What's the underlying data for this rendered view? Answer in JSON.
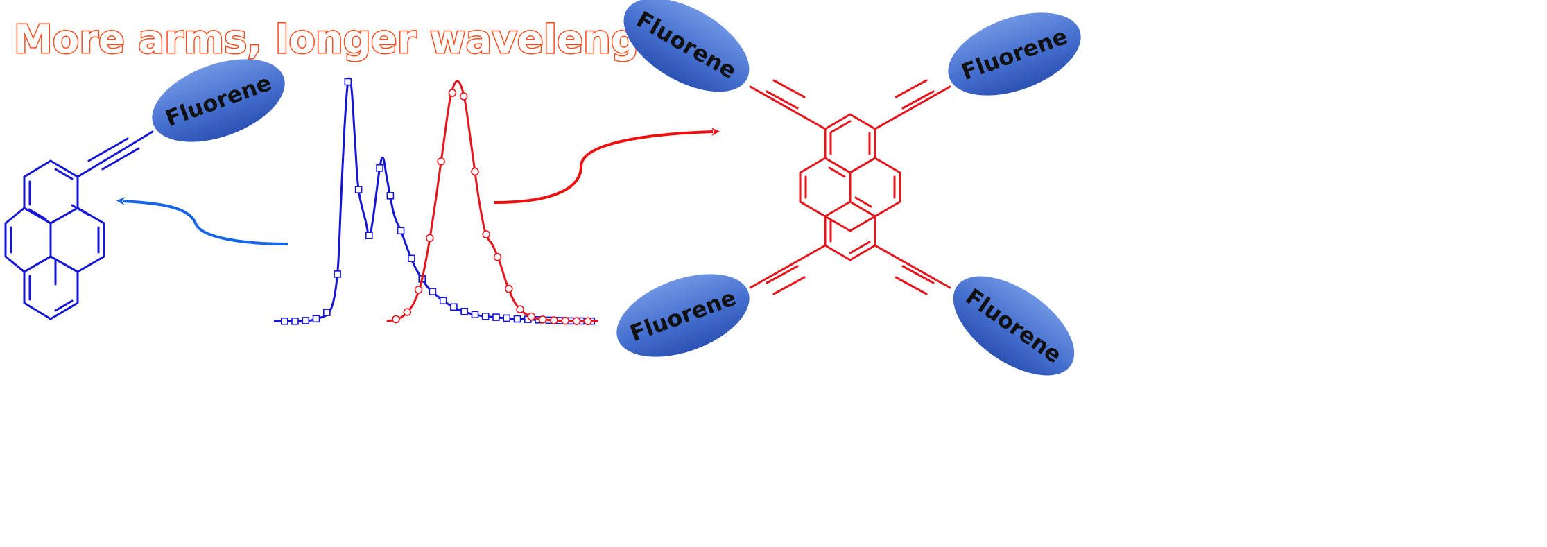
{
  "title": "More arms, longer wavelength",
  "fluorene_label": "Fluorene",
  "colors": {
    "title_fill": "#ffffff",
    "title_outline": "#ff4a1c",
    "blue_structure": "#1515d8",
    "red_structure": "#e8141c",
    "blue_arrow": "#1565e8",
    "red_arrow": "#ee1010",
    "ellipse_light": "#5b85db",
    "ellipse_dark": "#2c55b8",
    "label_text": "#111111"
  },
  "icons": {
    "left_arrow": "curved-arrow-left-icon",
    "right_arrow": "curved-arrow-right-icon"
  },
  "chart_data": {
    "type": "line",
    "series": [
      {
        "color": "#1515d8",
        "marker": "square",
        "x": [
          0,
          4,
          6,
          8,
          9,
          9.5,
          10,
          10.5,
          11,
          11.5,
          12,
          13,
          13.5,
          14,
          15,
          15.5,
          16,
          17,
          18,
          19,
          20,
          21,
          22,
          24,
          26,
          28,
          30,
          34,
          38,
          42,
          46
        ],
        "values": [
          0.005,
          0.005,
          0.015,
          0.05,
          0.2,
          0.5,
          0.8,
          0.997,
          0.97,
          0.75,
          0.55,
          0.42,
          0.36,
          0.42,
          0.64,
          0.68,
          0.6,
          0.45,
          0.38,
          0.3,
          0.23,
          0.18,
          0.14,
          0.09,
          0.055,
          0.035,
          0.025,
          0.015,
          0.01,
          0.006,
          0.005
        ]
      },
      {
        "color": "#e8141c",
        "marker": "circle",
        "x": [
          16,
          17,
          18,
          19,
          20,
          21,
          22,
          23,
          24,
          25,
          26,
          27,
          28,
          29,
          30,
          31,
          32,
          33,
          34,
          35,
          36,
          37,
          38,
          40,
          42,
          44,
          46
        ],
        "values": [
          0.005,
          0.01,
          0.02,
          0.045,
          0.09,
          0.18,
          0.33,
          0.52,
          0.73,
          0.93,
          1.0,
          0.93,
          0.73,
          0.52,
          0.37,
          0.32,
          0.25,
          0.16,
          0.09,
          0.05,
          0.03,
          0.018,
          0.012,
          0.008,
          0.006,
          0.005,
          0.005
        ]
      }
    ]
  }
}
